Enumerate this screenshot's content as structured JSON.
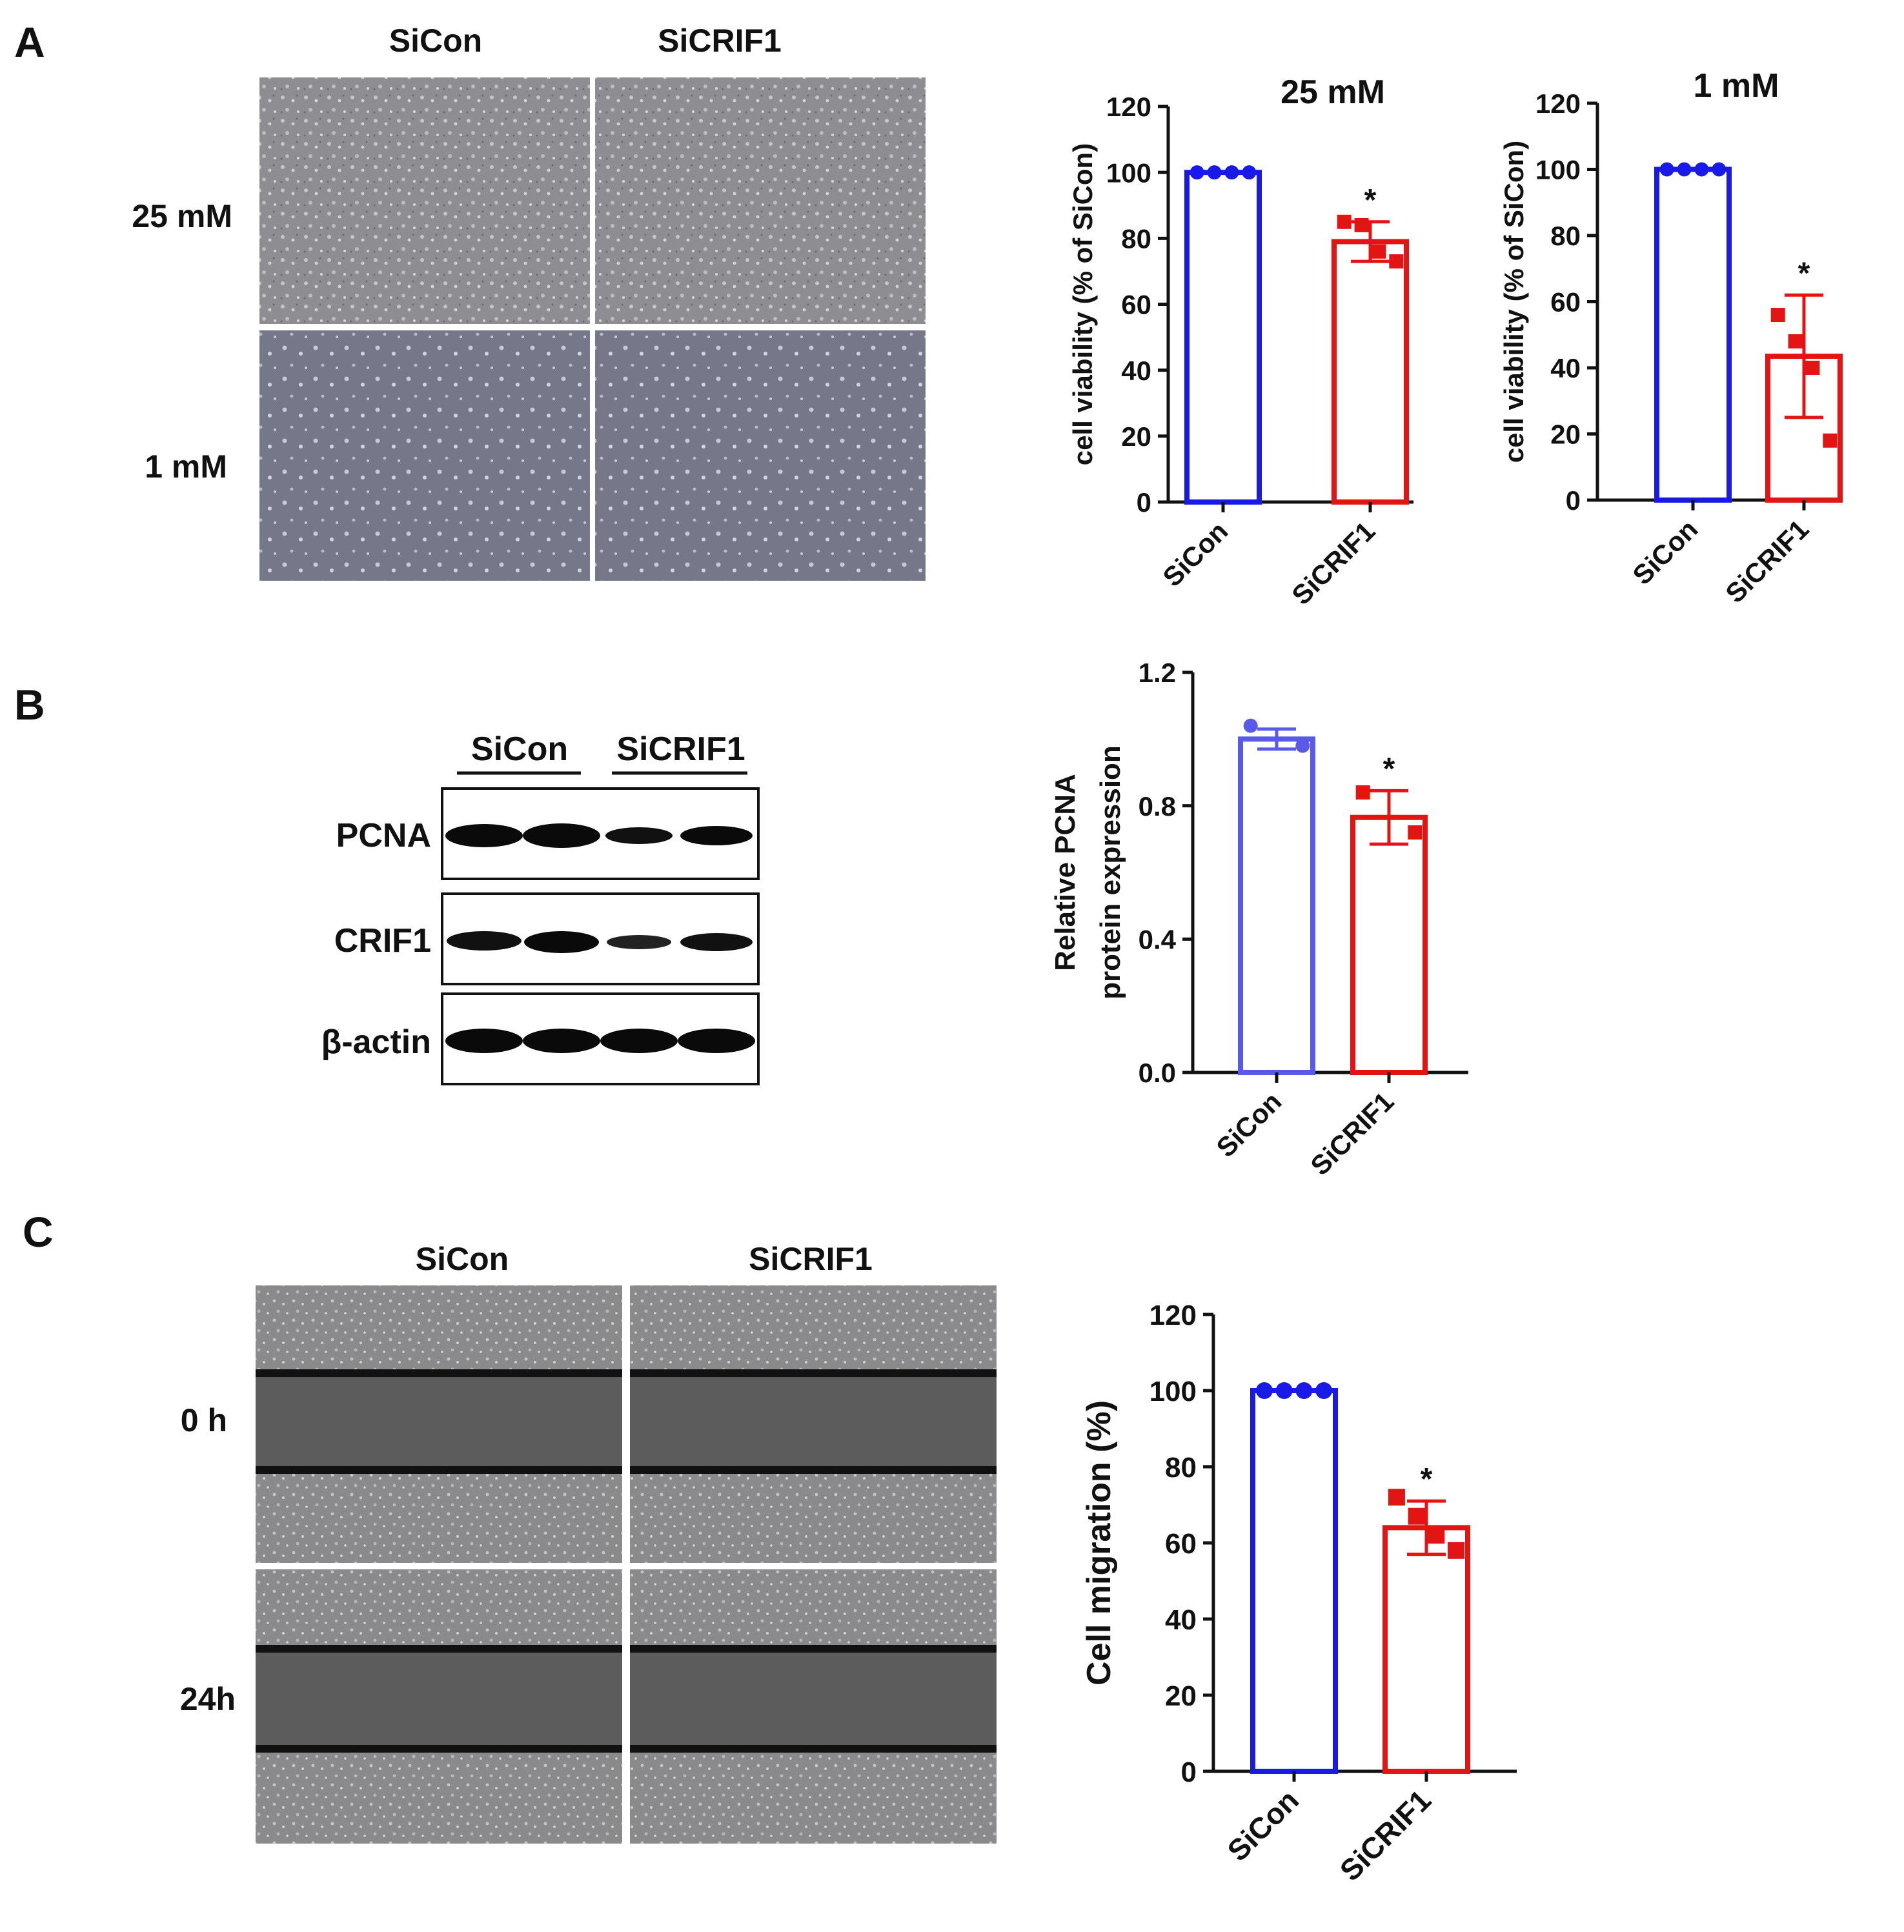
{
  "panels": {
    "a": {
      "letter": "A",
      "col_labels": [
        "SiCon",
        "SiCRIF1"
      ],
      "row_labels": [
        "25 mM",
        "1 mM"
      ]
    },
    "b": {
      "letter": "B",
      "groups": [
        "SiCon",
        "SiCRIF1"
      ],
      "bands": [
        "PCNA",
        "CRIF1",
        "β-actin"
      ]
    },
    "c": {
      "letter": "C",
      "col_labels": [
        "SiCon",
        "SiCRIF1"
      ],
      "row_labels": [
        "0 h",
        "24h"
      ]
    }
  },
  "colors": {
    "sicon": "#1a1ae6",
    "sicrif1": "#e31414",
    "sicon_b": "#5a5ae8",
    "micrograph_a": "#8e8e92",
    "micrograph_b": "#77778a",
    "wound": "#5c5c5c",
    "blot_band": "#0a0a0a"
  },
  "chart_data": [
    {
      "id": "chart-a1",
      "type": "bar",
      "title": "25 mM",
      "ylabel": "cell viability (% of SiCon)",
      "categories": [
        "SiCon",
        "SiCRIF1"
      ],
      "values": [
        100,
        79
      ],
      "error": [
        0,
        6
      ],
      "points": [
        [
          100,
          100,
          100,
          100
        ],
        [
          85,
          84,
          76,
          73
        ]
      ],
      "significance": [
        "",
        "*"
      ],
      "ylim": [
        0,
        120
      ],
      "yticks": [
        "0",
        "20",
        "40",
        "60",
        "80",
        "100",
        "120"
      ]
    },
    {
      "id": "chart-a2",
      "type": "bar",
      "title": "1 mM",
      "ylabel": "cell viability (% of SiCon)",
      "categories": [
        "SiCon",
        "SiCRIF1"
      ],
      "values": [
        100,
        43.5
      ],
      "error": [
        0,
        18.5
      ],
      "points": [
        [
          100,
          100,
          100,
          100
        ],
        [
          56,
          48,
          40,
          18
        ]
      ],
      "significance": [
        "",
        "*"
      ],
      "ylim": [
        0,
        120
      ],
      "yticks": [
        "0",
        "20",
        "40",
        "60",
        "80",
        "100",
        "120"
      ]
    },
    {
      "id": "chart-b",
      "type": "bar",
      "title": "",
      "ylabel": [
        "Relative PCNA",
        "protein expression"
      ],
      "categories": [
        "SiCon",
        "SiCRIF1"
      ],
      "values": [
        1.0,
        0.765
      ],
      "error": [
        0.03,
        0.08
      ],
      "points": [
        [
          1.04,
          0.98
        ],
        [
          0.84,
          0.72
        ]
      ],
      "significance": [
        "",
        "*"
      ],
      "ylim": [
        0,
        1.2
      ],
      "yticks": [
        "0.0",
        "0.4",
        "0.8",
        "1.2"
      ]
    },
    {
      "id": "chart-c",
      "type": "bar",
      "title": "",
      "ylabel": "Cell migration (%)",
      "categories": [
        "SiCon",
        "SiCRIF1"
      ],
      "values": [
        100,
        64
      ],
      "error": [
        0,
        7
      ],
      "points": [
        [
          100,
          100,
          100,
          100
        ],
        [
          72,
          67,
          62,
          58
        ]
      ],
      "significance": [
        "",
        "*"
      ],
      "ylim": [
        0,
        120
      ],
      "yticks": [
        "0",
        "20",
        "40",
        "60",
        "80",
        "100",
        "120"
      ]
    }
  ]
}
